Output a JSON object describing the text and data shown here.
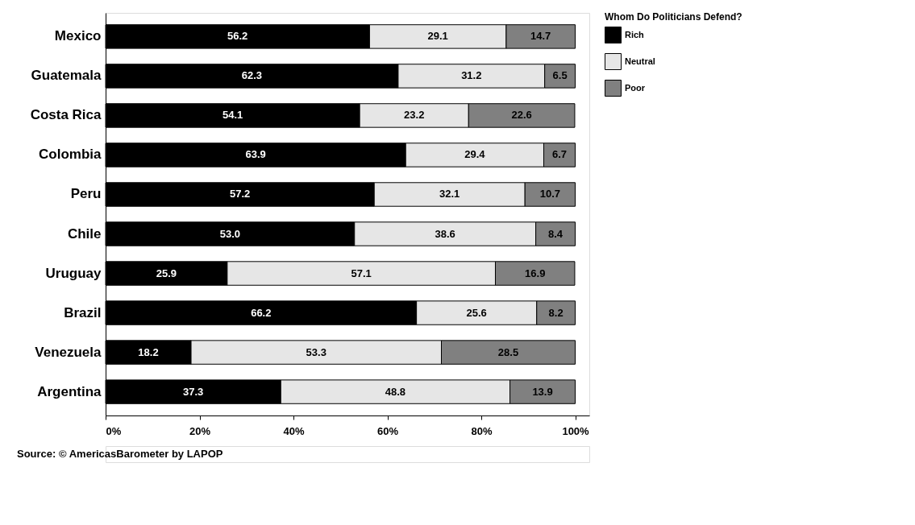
{
  "chart_data": {
    "type": "bar",
    "orientation": "horizontal",
    "stacked": true,
    "legend": "top right",
    "legend_title": "Whom Do Politicians Defend?",
    "grid": false,
    "categories": [
      "Mexico",
      "Guatemala",
      "Costa Rica",
      "Colombia",
      "Peru",
      "Chile",
      "Uruguay",
      "Brazil",
      "Venezuela",
      "Argentina"
    ],
    "series": [
      {
        "name": "Rich",
        "color": "#000000",
        "values": [
          56.2,
          62.3,
          54.1,
          63.9,
          57.2,
          53.0,
          25.9,
          66.2,
          18.2,
          37.3
        ],
        "value_labels": [
          "56.2",
          "62.3",
          "54.1",
          "63.9",
          "57.2",
          "53.0",
          "25.9",
          "66.2",
          "18.2",
          "37.3"
        ]
      },
      {
        "name": "Neutral",
        "color": "#e6e6e6",
        "values": [
          29.1,
          31.2,
          23.2,
          29.4,
          32.1,
          38.6,
          57.1,
          25.6,
          53.3,
          48.8
        ],
        "value_labels": [
          "29.1",
          "31.2",
          "23.2",
          "29.4",
          "32.1",
          "38.6",
          "57.1",
          "25.6",
          "53.3",
          "48.8"
        ]
      },
      {
        "name": "Poor",
        "color": "#808080",
        "values": [
          14.7,
          6.5,
          22.6,
          6.7,
          10.7,
          8.4,
          16.9,
          8.2,
          28.5,
          13.9
        ],
        "value_labels": [
          "14.7",
          "6.5",
          "22.6",
          "6.7",
          "10.7",
          "8.4",
          "16.9",
          "8.2",
          "28.5",
          "13.9"
        ]
      }
    ],
    "xlim": [
      0,
      103
    ],
    "xticks": [
      {
        "value": 0,
        "label": "0%"
      },
      {
        "value": 20,
        "label": "20%"
      },
      {
        "value": 40,
        "label": "40%"
      },
      {
        "value": 60,
        "label": "60%"
      },
      {
        "value": 80,
        "label": "80%"
      },
      {
        "value": 100,
        "label": "100%"
      }
    ],
    "annotations": [
      "Source: © AmericasBarometer by LAPOP"
    ]
  }
}
